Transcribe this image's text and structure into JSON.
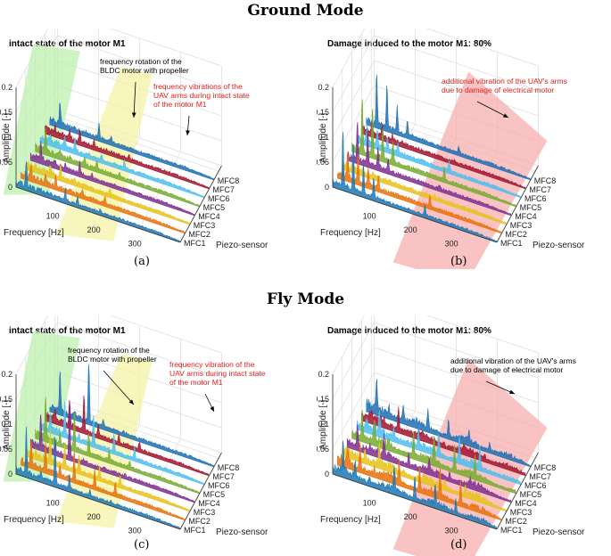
{
  "header": {
    "ground_title": "Ground Mode",
    "fly_title": "Fly Mode"
  },
  "colors": {
    "series": [
      "#1f77b4",
      "#e8710a",
      "#e8c21a",
      "#7e2f8e",
      "#77ac30",
      "#4dbeee",
      "#a2142f",
      "#1f6fb4"
    ],
    "green_band": "#b9f0a8",
    "yellow_band": "#f5f2a0",
    "red_band": "#f6aaaa",
    "annotation_red": "#e02020"
  },
  "chart_data": [
    {
      "type": "line",
      "id": "a",
      "mode": "ground",
      "panel_label": "(a)",
      "title": "intact state of the motor M1",
      "xlabel": "Frequency [Hz]",
      "ylabel": "Amplitude [-]",
      "zlabel": "Piezo-sensor",
      "x_ticks": [
        "100",
        "200",
        "300"
      ],
      "y_ticks": [
        "0",
        "0.05",
        "0.1",
        "0.15",
        "0.2"
      ],
      "ylim": [
        0,
        0.2
      ],
      "xlim": [
        0,
        400
      ],
      "series_names": [
        "MFC1",
        "MFC2",
        "MFC3",
        "MFC4",
        "MFC5",
        "MFC6",
        "MFC7",
        "MFC8"
      ],
      "peaks": [
        {
          "f": 25,
          "a": 0.05
        },
        {
          "f": 60,
          "a": 0.022
        },
        {
          "f": 85,
          "a": 0.03
        },
        {
          "f": 120,
          "a": 0.025
        },
        {
          "f": 150,
          "a": 0.018
        },
        {
          "f": 205,
          "a": 0.015
        }
      ],
      "bands": [
        "green",
        "yellow"
      ],
      "annotations": [
        {
          "text": "frequency rotation of the\nBLDC motor with propeller",
          "color": "black"
        },
        {
          "text": "frequency vibrations of the\nUAV arms during intact state\nof the motor M1",
          "color": "red"
        }
      ]
    },
    {
      "type": "line",
      "id": "b",
      "mode": "ground",
      "panel_label": "(b)",
      "title": "Damage induced to the motor M1: 80%",
      "xlabel": "Frequency [Hz]",
      "ylabel": "Amplitude [-]",
      "zlabel": "Piezo-sensor",
      "x_ticks": [
        "100",
        "200",
        "300"
      ],
      "y_ticks": [
        "0",
        "0.05",
        "0.1",
        "0.15",
        "0.2"
      ],
      "ylim": [
        0,
        0.2
      ],
      "xlim": [
        0,
        400
      ],
      "series_names": [
        "MFC1",
        "MFC2",
        "MFC3",
        "MFC4",
        "MFC5",
        "MFC6",
        "MFC7",
        "MFC8"
      ],
      "peaks": [
        {
          "f": 25,
          "a": 0.11
        },
        {
          "f": 50,
          "a": 0.1
        },
        {
          "f": 75,
          "a": 0.06
        },
        {
          "f": 100,
          "a": 0.04
        },
        {
          "f": 225,
          "a": 0.025
        }
      ],
      "bands": [
        "red"
      ],
      "annotations": [
        {
          "text": "additional vibration of the UAV's arms\ndue to damage of electrical motor",
          "color": "red"
        }
      ]
    },
    {
      "type": "line",
      "id": "c",
      "mode": "fly",
      "panel_label": "(c)",
      "title": "intact state of the motor M1",
      "xlabel": "Frequency [Hz]",
      "ylabel": "Amplitude [-]",
      "zlabel": "Piezo-sensor",
      "x_ticks": [
        "100",
        "200",
        "300"
      ],
      "y_ticks": [
        "0",
        "0.05",
        "0.1",
        "0.15",
        "0.2"
      ],
      "ylim": [
        0,
        0.2
      ],
      "xlim": [
        0,
        400
      ],
      "series_names": [
        "MFC1",
        "MFC2",
        "MFC3",
        "MFC4",
        "MFC5",
        "MFC6",
        "MFC7",
        "MFC8"
      ],
      "peaks": [
        {
          "f": 25,
          "a": 0.09
        },
        {
          "f": 60,
          "a": 0.07
        },
        {
          "f": 95,
          "a": 0.12
        },
        {
          "f": 130,
          "a": 0.06
        },
        {
          "f": 180,
          "a": 0.035
        },
        {
          "f": 230,
          "a": 0.025
        }
      ],
      "bands": [
        "green",
        "yellow"
      ],
      "annotations": [
        {
          "text": "frequency rotation of the\nBLDC motor with propeller",
          "color": "black"
        },
        {
          "text": "frequency vibration of the\nUAV arms during intact state\nof the motor M1",
          "color": "red"
        }
      ]
    },
    {
      "type": "line",
      "id": "d",
      "mode": "fly",
      "panel_label": "(d)",
      "title": "Damage induced to the motor M1: 80%",
      "xlabel": "Frequency [Hz]",
      "ylabel": "Amplitude [-]",
      "zlabel": "Piezo-sensor",
      "x_ticks": [
        "100",
        "200",
        "300"
      ],
      "y_ticks": [
        "0",
        "0.05",
        "0.1",
        "0.15",
        "0.2"
      ],
      "ylim": [
        0,
        0.2
      ],
      "xlim": [
        0,
        400
      ],
      "series_names": [
        "MFC1",
        "MFC2",
        "MFC3",
        "MFC4",
        "MFC5",
        "MFC6",
        "MFC7",
        "MFC8"
      ],
      "peaks": [
        {
          "f": 25,
          "a": 0.06
        },
        {
          "f": 55,
          "a": 0.05
        },
        {
          "f": 90,
          "a": 0.045
        },
        {
          "f": 150,
          "a": 0.05
        },
        {
          "f": 200,
          "a": 0.055
        },
        {
          "f": 250,
          "a": 0.06
        },
        {
          "f": 300,
          "a": 0.045
        }
      ],
      "bands": [
        "red"
      ],
      "annotations": [
        {
          "text": "additional vibration of the UAV's arms\ndue to damage of electrical motor",
          "color": "black"
        }
      ]
    }
  ]
}
